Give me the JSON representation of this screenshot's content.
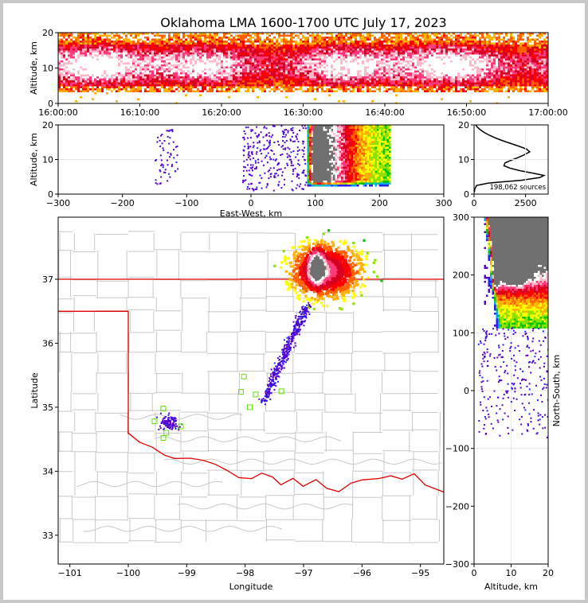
{
  "title": "Oklahoma LMA 1600-1700 UTC July 17, 2023",
  "chart_data": [
    {
      "id": "time_height",
      "type": "heatmap",
      "xlabel": "",
      "ylabel": "Altitude, km",
      "xticks": [
        "16:00:00",
        "16:10:00",
        "16:20:00",
        "16:30:00",
        "16:40:00",
        "16:50:00",
        "17:00:00"
      ],
      "xlim": [
        "16:00:00",
        "17:00:00"
      ],
      "yticks": [
        0,
        10,
        20
      ],
      "ylim": [
        0,
        20
      ]
    },
    {
      "id": "ew_altitude",
      "type": "heatmap",
      "xlabel": "East-West, km",
      "ylabel": "Altitude, km",
      "xticks": [
        -300,
        -200,
        -100,
        0,
        100,
        200,
        300
      ],
      "xlim": [
        -300,
        300
      ],
      "yticks": [
        0,
        10,
        20
      ],
      "ylim": [
        0,
        20
      ],
      "cores": [
        {
          "x": 105,
          "z": 11
        },
        {
          "x": 105,
          "z": 6
        }
      ]
    },
    {
      "id": "altitude_histogram",
      "type": "line",
      "xlabel": "",
      "ylabel": "",
      "xticks": [
        0,
        2500
      ],
      "xlim": [
        0,
        3600
      ],
      "yticks": [
        0,
        10,
        20
      ],
      "ylim": [
        0,
        20
      ],
      "annotation": "198,062 sources",
      "profile": [
        {
          "alt": 0.5,
          "count": 10
        },
        {
          "alt": 1.5,
          "count": 40
        },
        {
          "alt": 2.5,
          "count": 120
        },
        {
          "alt": 3.2,
          "count": 700
        },
        {
          "alt": 4.0,
          "count": 2300
        },
        {
          "alt": 4.8,
          "count": 3200
        },
        {
          "alt": 5.4,
          "count": 3400
        },
        {
          "alt": 6.0,
          "count": 2900
        },
        {
          "alt": 6.8,
          "count": 2200
        },
        {
          "alt": 7.5,
          "count": 1750
        },
        {
          "alt": 8.2,
          "count": 1450
        },
        {
          "alt": 9.0,
          "count": 1500
        },
        {
          "alt": 9.8,
          "count": 1800
        },
        {
          "alt": 10.6,
          "count": 2150
        },
        {
          "alt": 11.4,
          "count": 2450
        },
        {
          "alt": 12.2,
          "count": 2700
        },
        {
          "alt": 13.0,
          "count": 2550
        },
        {
          "alt": 13.8,
          "count": 2200
        },
        {
          "alt": 14.6,
          "count": 1800
        },
        {
          "alt": 15.4,
          "count": 1400
        },
        {
          "alt": 16.2,
          "count": 1050
        },
        {
          "alt": 17.0,
          "count": 750
        },
        {
          "alt": 17.8,
          "count": 500
        },
        {
          "alt": 18.6,
          "count": 300
        },
        {
          "alt": 19.4,
          "count": 150
        },
        {
          "alt": 20.0,
          "count": 80
        }
      ]
    },
    {
      "id": "plan_view",
      "type": "heatmap",
      "xlabel": "Longitude",
      "ylabel": "Latitude",
      "xticks": [
        -101,
        -100,
        -99,
        -98,
        -97,
        -96,
        -95
      ],
      "xlim": [
        -101.2,
        -94.6
      ],
      "yticks": [
        33,
        34,
        35,
        36,
        37
      ],
      "ylim": [
        32.55,
        37.97
      ],
      "state_border_color": "#e00000",
      "county_line_color": "#c8c8c8",
      "panhandle_south_lat": 36.5,
      "panhandle_east_lon": -100.0,
      "kansas_border_lat": 37.0,
      "stations": [
        {
          "lon": -99.4,
          "lat": 34.98
        },
        {
          "lon": -99.55,
          "lat": 34.78
        },
        {
          "lon": -99.35,
          "lat": 34.6
        },
        {
          "lon": -99.4,
          "lat": 34.52
        },
        {
          "lon": -99.1,
          "lat": 34.7
        },
        {
          "lon": -98.02,
          "lat": 35.48
        },
        {
          "lon": -98.07,
          "lat": 35.24
        },
        {
          "lon": -97.92,
          "lat": 35.0
        },
        {
          "lon": -97.82,
          "lat": 35.2
        },
        {
          "lon": -97.38,
          "lat": 35.25
        }
      ],
      "storm_core": {
        "lon": -96.8,
        "lat": 37.2
      }
    },
    {
      "id": "altitude_ns",
      "type": "heatmap",
      "xlabel": "Altitude, km",
      "ylabel": "North-South, km",
      "xticks": [
        0,
        10,
        20
      ],
      "xlim": [
        0,
        20
      ],
      "yticks": [
        -300,
        -200,
        -100,
        0,
        100,
        200
      ],
      "ylim": [
        -300,
        300
      ],
      "ytick_top_label": "300",
      "cores": [
        {
          "z": 11,
          "y": 200
        },
        {
          "z": 6,
          "y": 200
        }
      ]
    }
  ],
  "colors": {
    "ramp": [
      "#5500cc",
      "#2222ff",
      "#00a0ff",
      "#00c8a0",
      "#00c800",
      "#90e000",
      "#ffff00",
      "#ffb000",
      "#ff6000",
      "#ff0000",
      "#d80020",
      "#ff3a7a",
      "#ffb8c8",
      "#ffffff",
      "#707070"
    ]
  }
}
